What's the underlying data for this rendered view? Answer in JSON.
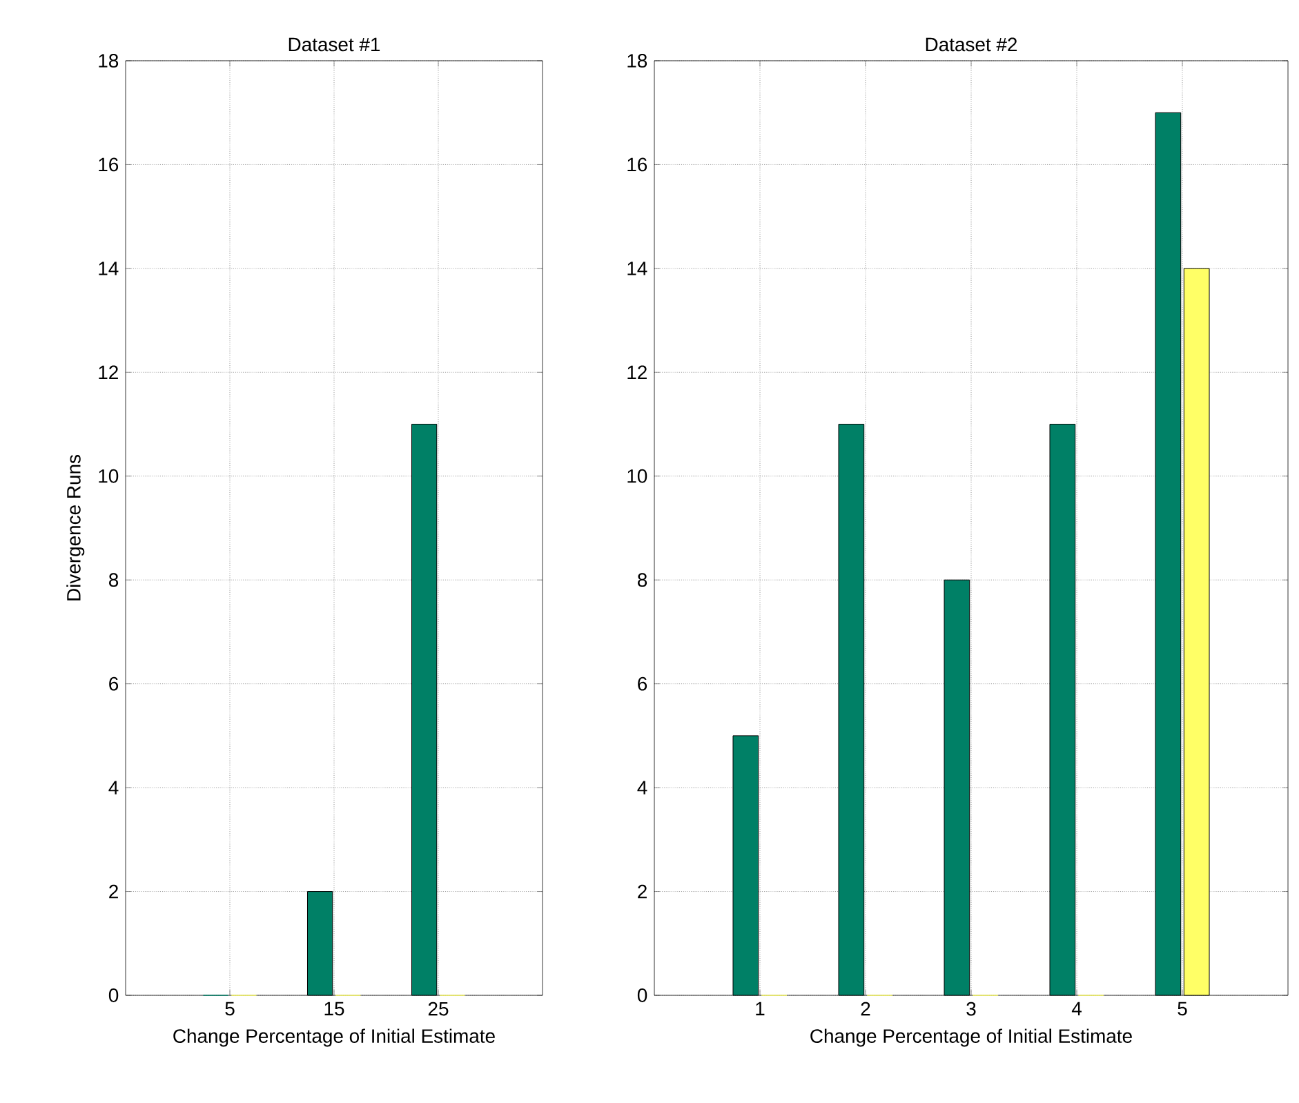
{
  "chart_data": [
    {
      "type": "bar",
      "title": "Dataset #1",
      "xlabel": "Change Percentage of Initial Estimate",
      "ylabel": "Divergence Runs",
      "categories": [
        "5",
        "15",
        "25"
      ],
      "series": [
        {
          "color": "#008066",
          "values": [
            0,
            2,
            11
          ]
        },
        {
          "color": "#ffff66",
          "values": [
            0,
            0,
            0
          ]
        }
      ],
      "ylim": [
        0,
        18
      ],
      "yticks": [
        0,
        2,
        4,
        6,
        8,
        10,
        12,
        14,
        16,
        18
      ],
      "grid": true
    },
    {
      "type": "bar",
      "title": "Dataset #2",
      "xlabel": "Change Percentage of Initial Estimate",
      "categories": [
        "1",
        "2",
        "3",
        "4",
        "5"
      ],
      "series": [
        {
          "color": "#008066",
          "values": [
            5,
            11,
            8,
            11,
            17
          ]
        },
        {
          "color": "#ffff66",
          "values": [
            0,
            0,
            0,
            0,
            14
          ]
        }
      ],
      "ylim": [
        0,
        18
      ],
      "yticks": [
        0,
        2,
        4,
        6,
        8,
        10,
        12,
        14,
        16,
        18
      ],
      "grid": true
    }
  ]
}
